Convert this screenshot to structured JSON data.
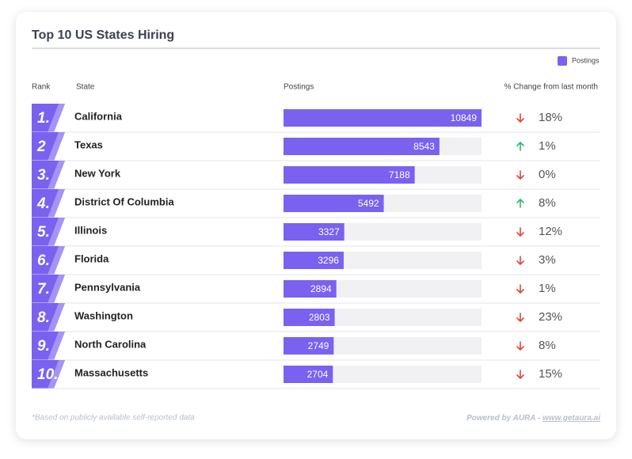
{
  "chart_data": {
    "type": "bar",
    "title": "Top 10 US States Hiring",
    "legend": "Postings",
    "columns": [
      "Rank",
      "State",
      "Postings",
      "% Change from last month"
    ],
    "ranks": [
      "1.",
      "2",
      "3.",
      "4.",
      "5.",
      "6.",
      "7.",
      "8.",
      "9.",
      "10."
    ],
    "categories": [
      "California",
      "Texas",
      "New York",
      "District Of Columbia",
      "Illinois",
      "Florida",
      "Pennsylvania",
      "Washington",
      "North Carolina",
      "Massachusetts"
    ],
    "values": [
      10849,
      8543,
      7188,
      5492,
      3327,
      3296,
      2894,
      2803,
      2749,
      2704
    ],
    "color": "#7b61f0",
    "change": {
      "values": [
        18,
        1,
        0,
        8,
        12,
        3,
        1,
        23,
        8,
        15
      ],
      "value_labels": [
        "18%",
        "1%",
        "0%",
        "8%",
        "12%",
        "3%",
        "1%",
        "23%",
        "8%",
        "15%"
      ],
      "direction": [
        "down",
        "up",
        "down",
        "up",
        "down",
        "down",
        "down",
        "down",
        "down",
        "down"
      ],
      "colors": {
        "up": "#2bb673",
        "down": "#e0453a"
      }
    },
    "footnote": "*Based on publicly available self-reported data",
    "credit": "Powered by AURA -",
    "link": "www.getaura.ai"
  }
}
